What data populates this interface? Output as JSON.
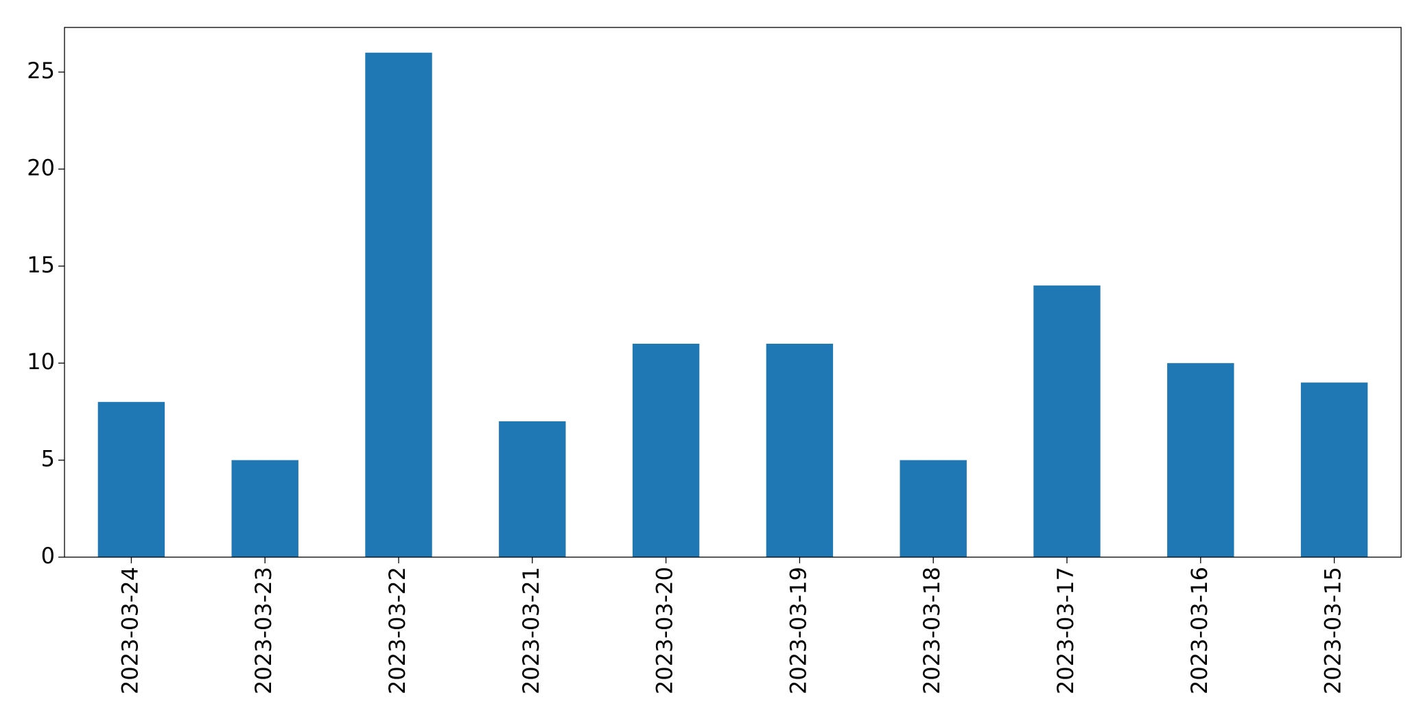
{
  "chart_data": {
    "type": "bar",
    "categories": [
      "2023-03-24",
      "2023-03-23",
      "2023-03-22",
      "2023-03-21",
      "2023-03-20",
      "2023-03-19",
      "2023-03-18",
      "2023-03-17",
      "2023-03-16",
      "2023-03-15"
    ],
    "values": [
      8,
      5,
      26,
      7,
      11,
      11,
      5,
      14,
      10,
      9
    ],
    "color": "#1f77b4",
    "ylim": [
      0,
      27.3
    ],
    "yticks": [
      0,
      5,
      10,
      15,
      20,
      25
    ],
    "grid": false
  }
}
